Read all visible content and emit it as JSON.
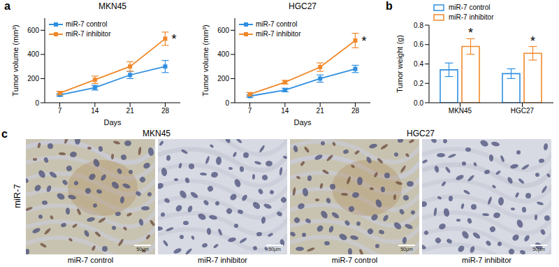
{
  "chart_data": [
    {
      "panel": "a",
      "type": "line",
      "title": "MKN45",
      "x": [
        7,
        14,
        21,
        28
      ],
      "xlim": [
        4,
        31
      ],
      "xticks": [
        7,
        14,
        21,
        28
      ],
      "xlabel": "Days",
      "ylabel": "Tumor volume (mm³)",
      "ylim": [
        0,
        700
      ],
      "yticks": [
        0,
        200,
        400,
        600
      ],
      "grid": false,
      "legend": "upper left",
      "series": [
        {
          "name": "miR-7 control",
          "color": "#2f8fe0",
          "marker": "square",
          "values": [
            65,
            125,
            230,
            300
          ],
          "error": [
            10,
            20,
            30,
            50
          ]
        },
        {
          "name": "miR-7 inhibitor",
          "color": "#f0892b",
          "marker": "square",
          "values": [
            80,
            190,
            300,
            530
          ],
          "error": [
            15,
            30,
            40,
            55
          ]
        }
      ],
      "annotations": [
        {
          "text": "*",
          "series": "miR-7 inhibitor",
          "x": 28
        }
      ]
    },
    {
      "type": "line",
      "title": "HGC27",
      "x": [
        7,
        14,
        21,
        28
      ],
      "xlim": [
        4,
        31
      ],
      "xticks": [
        7,
        14,
        21,
        28
      ],
      "xlabel": "Days",
      "ylabel": "Tumor volume (mm³)",
      "ylim": [
        0,
        700
      ],
      "yticks": [
        0,
        200,
        400,
        600
      ],
      "grid": false,
      "legend": "upper left",
      "series": [
        {
          "name": "miR-7 control",
          "color": "#2f8fe0",
          "marker": "square",
          "values": [
            55,
            105,
            200,
            280
          ],
          "error": [
            10,
            15,
            30,
            30
          ]
        },
        {
          "name": "miR-7 inhibitor",
          "color": "#f0892b",
          "marker": "square",
          "values": [
            70,
            170,
            295,
            515
          ],
          "error": [
            15,
            15,
            35,
            60
          ]
        }
      ],
      "annotations": [
        {
          "text": "*",
          "series": "miR-7 inhibitor",
          "x": 28
        }
      ]
    },
    {
      "panel": "b",
      "type": "bar",
      "categories": [
        "MKN45",
        "HGC27"
      ],
      "ylabel": "Tumor weight (g)",
      "ylim": [
        0,
        0.8
      ],
      "yticks": [
        {
          "value": 0,
          "label": "0.0"
        },
        0.2,
        0.4,
        0.6,
        0.8
      ],
      "grid": false,
      "legend": "upper left",
      "series": [
        {
          "name": "miR-7 control",
          "color": "#2f8fe0",
          "values": [
            0.34,
            0.3
          ],
          "error": [
            0.07,
            0.05
          ]
        },
        {
          "name": "miR-7 inhibitor",
          "color": "#f0892b",
          "values": [
            0.58,
            0.51
          ],
          "error": [
            0.08,
            0.07
          ]
        }
      ],
      "annotations": [
        {
          "text": "*",
          "series": "miR-7 inhibitor",
          "category": "MKN45"
        },
        {
          "text": "*",
          "series": "miR-7 inhibitor",
          "category": "HGC27"
        }
      ]
    }
  ],
  "panel_c": {
    "panel": "c",
    "row_label": "miR-7",
    "groups": [
      {
        "title": "MKN45",
        "images": [
          {
            "label": "miR-7 control",
            "scale_bar": "50μm"
          },
          {
            "label": "miR-7 inhibitor",
            "scale_bar": "50μm"
          }
        ]
      },
      {
        "title": "HGC27",
        "images": [
          {
            "label": "miR-7 control",
            "scale_bar": "50μm"
          },
          {
            "label": "miR-7 inhibitor",
            "scale_bar": "50μm"
          }
        ]
      }
    ]
  }
}
